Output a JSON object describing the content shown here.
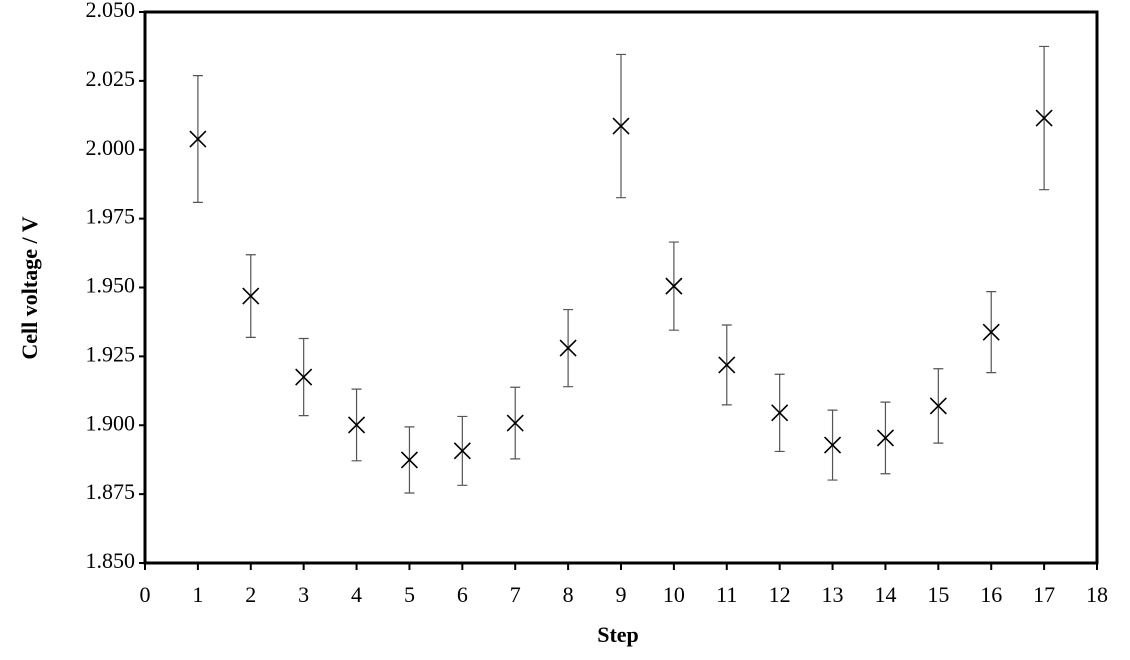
{
  "chart_data": {
    "type": "scatter",
    "x_label": "Step",
    "y_label": "Cell voltage / V",
    "x": [
      1,
      2,
      3,
      4,
      5,
      6,
      7,
      8,
      9,
      10,
      11,
      12,
      13,
      14,
      15,
      16,
      17
    ],
    "values": [
      2.0039,
      1.9469,
      1.9175,
      1.9001,
      1.8874,
      1.8907,
      1.9008,
      1.928,
      2.0086,
      1.9505,
      1.9219,
      1.9045,
      1.8928,
      1.8954,
      1.907,
      1.9338,
      2.0115
    ],
    "errors": [
      0.023,
      0.015,
      0.014,
      0.013,
      0.012,
      0.0125,
      0.013,
      0.014,
      0.026,
      0.016,
      0.0145,
      0.014,
      0.0127,
      0.013,
      0.0135,
      0.0147,
      0.026
    ],
    "color": "#000000",
    "xlim": [
      0,
      18
    ],
    "xticks": [
      0,
      1,
      2,
      3,
      4,
      5,
      6,
      7,
      8,
      9,
      10,
      11,
      12,
      13,
      14,
      15,
      16,
      17,
      18
    ],
    "ylim": [
      1.85,
      2.05
    ],
    "yticks": [
      {
        "value": 1.85,
        "label": "1.850"
      },
      {
        "value": 1.875,
        "label": "1.875"
      },
      {
        "value": 1.9,
        "label": "1.900"
      },
      {
        "value": 1.925,
        "label": "1.925"
      },
      {
        "value": 1.95,
        "label": "1.950"
      },
      {
        "value": 1.975,
        "label": "1.975"
      },
      {
        "value": 2.0,
        "label": "2.000"
      },
      {
        "value": 2.025,
        "label": "2.025"
      },
      {
        "value": 2.05,
        "label": "2.050"
      }
    ]
  }
}
